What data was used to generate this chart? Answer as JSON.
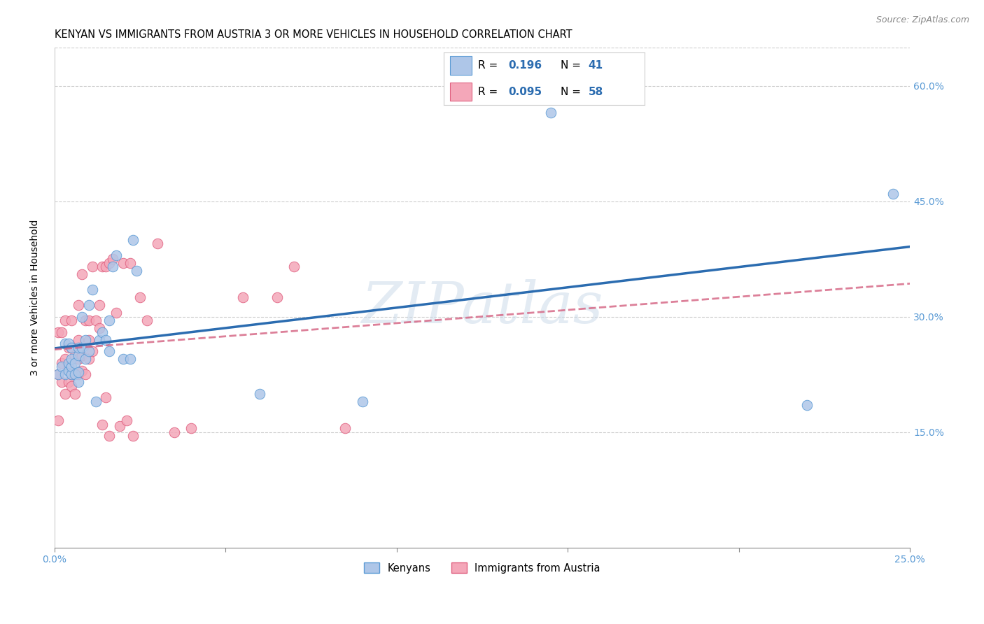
{
  "title": "KENYAN VS IMMIGRANTS FROM AUSTRIA 3 OR MORE VEHICLES IN HOUSEHOLD CORRELATION CHART",
  "source": "Source: ZipAtlas.com",
  "ylabel": "3 or more Vehicles in Household",
  "xlim": [
    0.0,
    0.25
  ],
  "ylim": [
    0.0,
    0.65
  ],
  "xtick_vals": [
    0.0,
    0.05,
    0.1,
    0.15,
    0.2,
    0.25
  ],
  "xtick_labels_show": [
    "0.0%",
    "",
    "",
    "",
    "",
    "25.0%"
  ],
  "ytick_vals": [
    0.15,
    0.3,
    0.45,
    0.6
  ],
  "ytick_labels": [
    "15.0%",
    "30.0%",
    "45.0%",
    "60.0%"
  ],
  "kenyan_color": "#aec6e8",
  "kenyan_edge": "#5b9bd5",
  "austria_color": "#f4a7b9",
  "austria_edge": "#e06080",
  "kenyan_line_color": "#2b6cb0",
  "austria_line_color": "#d46080",
  "kenyan_R": "0.196",
  "kenyan_N": "41",
  "austria_R": "0.095",
  "austria_N": "58",
  "tick_color": "#5b9bd5",
  "watermark": "ZIPatlas",
  "bg_color": "#ffffff",
  "grid_color": "#cccccc",
  "title_fontsize": 10.5,
  "ylabel_fontsize": 10,
  "tick_fontsize": 10,
  "kenyan_x": [
    0.001,
    0.002,
    0.003,
    0.003,
    0.004,
    0.004,
    0.004,
    0.005,
    0.005,
    0.005,
    0.005,
    0.006,
    0.006,
    0.007,
    0.007,
    0.007,
    0.007,
    0.008,
    0.008,
    0.009,
    0.009,
    0.01,
    0.01,
    0.011,
    0.012,
    0.013,
    0.014,
    0.015,
    0.016,
    0.016,
    0.017,
    0.018,
    0.02,
    0.022,
    0.023,
    0.024,
    0.06,
    0.09,
    0.145,
    0.22,
    0.245
  ],
  "kenyan_y": [
    0.225,
    0.235,
    0.225,
    0.265,
    0.23,
    0.24,
    0.265,
    0.225,
    0.235,
    0.245,
    0.26,
    0.225,
    0.24,
    0.215,
    0.228,
    0.25,
    0.26,
    0.26,
    0.3,
    0.245,
    0.27,
    0.255,
    0.315,
    0.335,
    0.19,
    0.27,
    0.28,
    0.27,
    0.255,
    0.295,
    0.365,
    0.38,
    0.245,
    0.245,
    0.4,
    0.36,
    0.2,
    0.19,
    0.565,
    0.185,
    0.46
  ],
  "austria_x": [
    0.001,
    0.001,
    0.001,
    0.002,
    0.002,
    0.002,
    0.003,
    0.003,
    0.003,
    0.004,
    0.004,
    0.004,
    0.005,
    0.005,
    0.005,
    0.005,
    0.006,
    0.006,
    0.006,
    0.007,
    0.007,
    0.007,
    0.007,
    0.008,
    0.008,
    0.008,
    0.009,
    0.009,
    0.01,
    0.01,
    0.01,
    0.011,
    0.011,
    0.012,
    0.013,
    0.013,
    0.014,
    0.014,
    0.015,
    0.015,
    0.016,
    0.016,
    0.017,
    0.018,
    0.019,
    0.02,
    0.021,
    0.022,
    0.023,
    0.025,
    0.027,
    0.03,
    0.035,
    0.04,
    0.055,
    0.065,
    0.07,
    0.085
  ],
  "austria_y": [
    0.165,
    0.225,
    0.28,
    0.215,
    0.24,
    0.28,
    0.2,
    0.245,
    0.295,
    0.215,
    0.235,
    0.26,
    0.21,
    0.225,
    0.26,
    0.295,
    0.2,
    0.225,
    0.25,
    0.225,
    0.245,
    0.27,
    0.315,
    0.23,
    0.25,
    0.355,
    0.225,
    0.295,
    0.245,
    0.27,
    0.295,
    0.255,
    0.365,
    0.295,
    0.285,
    0.315,
    0.365,
    0.16,
    0.195,
    0.365,
    0.37,
    0.145,
    0.375,
    0.305,
    0.158,
    0.37,
    0.165,
    0.37,
    0.145,
    0.325,
    0.295,
    0.395,
    0.15,
    0.155,
    0.325,
    0.325,
    0.365,
    0.155
  ]
}
